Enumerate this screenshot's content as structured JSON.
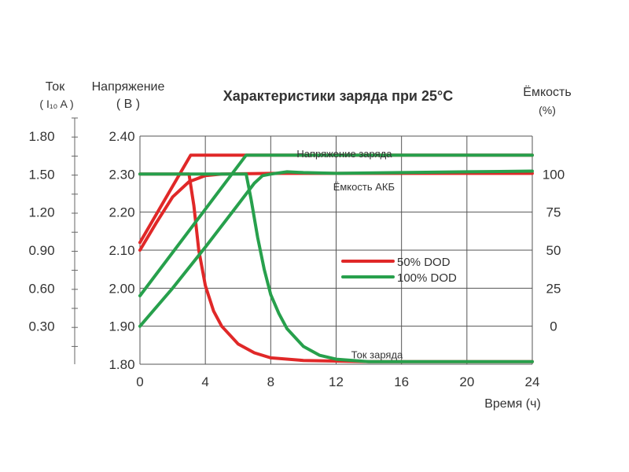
{
  "chart_data": {
    "type": "line",
    "title": "Характеристики заряда при 25°C",
    "xlabel": "Время (ч)",
    "xlim": [
      0,
      24
    ],
    "x_ticks": [
      0,
      4,
      8,
      12,
      16,
      20,
      24
    ],
    "grid": true,
    "axes": {
      "current": {
        "title_line1": "Ток",
        "title_line2": "( I₁₀ A )",
        "range": [
          0,
          1.8
        ],
        "ticks": [
          0.3,
          0.6,
          0.9,
          1.2,
          1.5,
          1.8
        ],
        "tick_labels": [
          "0.30",
          "0.60",
          "0.90",
          "1.20",
          "1.50",
          "1.80"
        ]
      },
      "voltage": {
        "title_line1": "Напряжение",
        "title_line2": "( В )",
        "range": [
          1.8,
          2.4
        ],
        "ticks": [
          1.8,
          1.9,
          2.0,
          2.1,
          2.2,
          2.3,
          2.4
        ],
        "tick_labels": [
          "1.80",
          "1.90",
          "2.00",
          "2.10",
          "2.20",
          "2.30",
          "2.40"
        ]
      },
      "capacity": {
        "title_line1": "Ёмкость",
        "title_line2": "(%)",
        "range": [
          0,
          100
        ],
        "ticks": [
          0,
          25,
          50,
          75,
          100
        ],
        "tick_labels": [
          "0",
          "25",
          "50",
          "75",
          "100"
        ]
      }
    },
    "annotations": [
      {
        "text": "Напряжение заряда",
        "x": 12.5,
        "voltage": 2.355
      },
      {
        "text": "Ёмкость АКБ",
        "x": 13.7,
        "voltage": 2.268
      },
      {
        "text": "Ток заряда",
        "x": 14.5,
        "voltage": 1.826
      }
    ],
    "legend": {
      "position": "center-right",
      "entries": [
        {
          "label": "50%  DOD",
          "color": "#e02828"
        },
        {
          "label": "100% DOD",
          "color": "#27a04c"
        }
      ]
    },
    "series": [
      {
        "name": "50%  DOD",
        "color": "#e02828",
        "quantity": "voltage",
        "points": [
          [
            0,
            2.12
          ],
          [
            3.1,
            2.35
          ],
          [
            24,
            2.35
          ]
        ]
      },
      {
        "name": "50%  DOD",
        "color": "#e02828",
        "quantity": "capacity",
        "points": [
          [
            0,
            50
          ],
          [
            1,
            68
          ],
          [
            2,
            85
          ],
          [
            3,
            95
          ],
          [
            3.5,
            97
          ],
          [
            4,
            99
          ],
          [
            5,
            100
          ],
          [
            8,
            100.5
          ],
          [
            12,
            100.5
          ],
          [
            24,
            100.5
          ]
        ]
      },
      {
        "name": "50%  DOD",
        "color": "#e02828",
        "quantity": "current",
        "points": [
          [
            0,
            1.5
          ],
          [
            3,
            1.5
          ],
          [
            3.3,
            1.25
          ],
          [
            3.6,
            0.9
          ],
          [
            4,
            0.62
          ],
          [
            4.5,
            0.42
          ],
          [
            5,
            0.3
          ],
          [
            6,
            0.16
          ],
          [
            7,
            0.09
          ],
          [
            8,
            0.05
          ],
          [
            10,
            0.03
          ],
          [
            14,
            0.02
          ],
          [
            24,
            0.02
          ]
        ]
      },
      {
        "name": "100% DOD",
        "color": "#27a04c",
        "quantity": "voltage",
        "points": [
          [
            0,
            1.98
          ],
          [
            6.5,
            2.35
          ],
          [
            24,
            2.35
          ]
        ]
      },
      {
        "name": "100% DOD",
        "color": "#27a04c",
        "quantity": "capacity",
        "points": [
          [
            0,
            0
          ],
          [
            2,
            25
          ],
          [
            4,
            52
          ],
          [
            6,
            80
          ],
          [
            7,
            94
          ],
          [
            7.5,
            99
          ],
          [
            8,
            100
          ],
          [
            9,
            101.5
          ],
          [
            10,
            101
          ],
          [
            12,
            100.5
          ],
          [
            16,
            101
          ],
          [
            20,
            101.5
          ],
          [
            24,
            102
          ]
        ]
      },
      {
        "name": "100% DOD",
        "color": "#27a04c",
        "quantity": "current",
        "points": [
          [
            0,
            1.5
          ],
          [
            6.5,
            1.5
          ],
          [
            6.8,
            1.3
          ],
          [
            7.2,
            1.0
          ],
          [
            7.6,
            0.75
          ],
          [
            8,
            0.55
          ],
          [
            8.5,
            0.4
          ],
          [
            9,
            0.28
          ],
          [
            10,
            0.14
          ],
          [
            11,
            0.07
          ],
          [
            12,
            0.04
          ],
          [
            14,
            0.02
          ],
          [
            24,
            0.02
          ]
        ]
      }
    ]
  }
}
